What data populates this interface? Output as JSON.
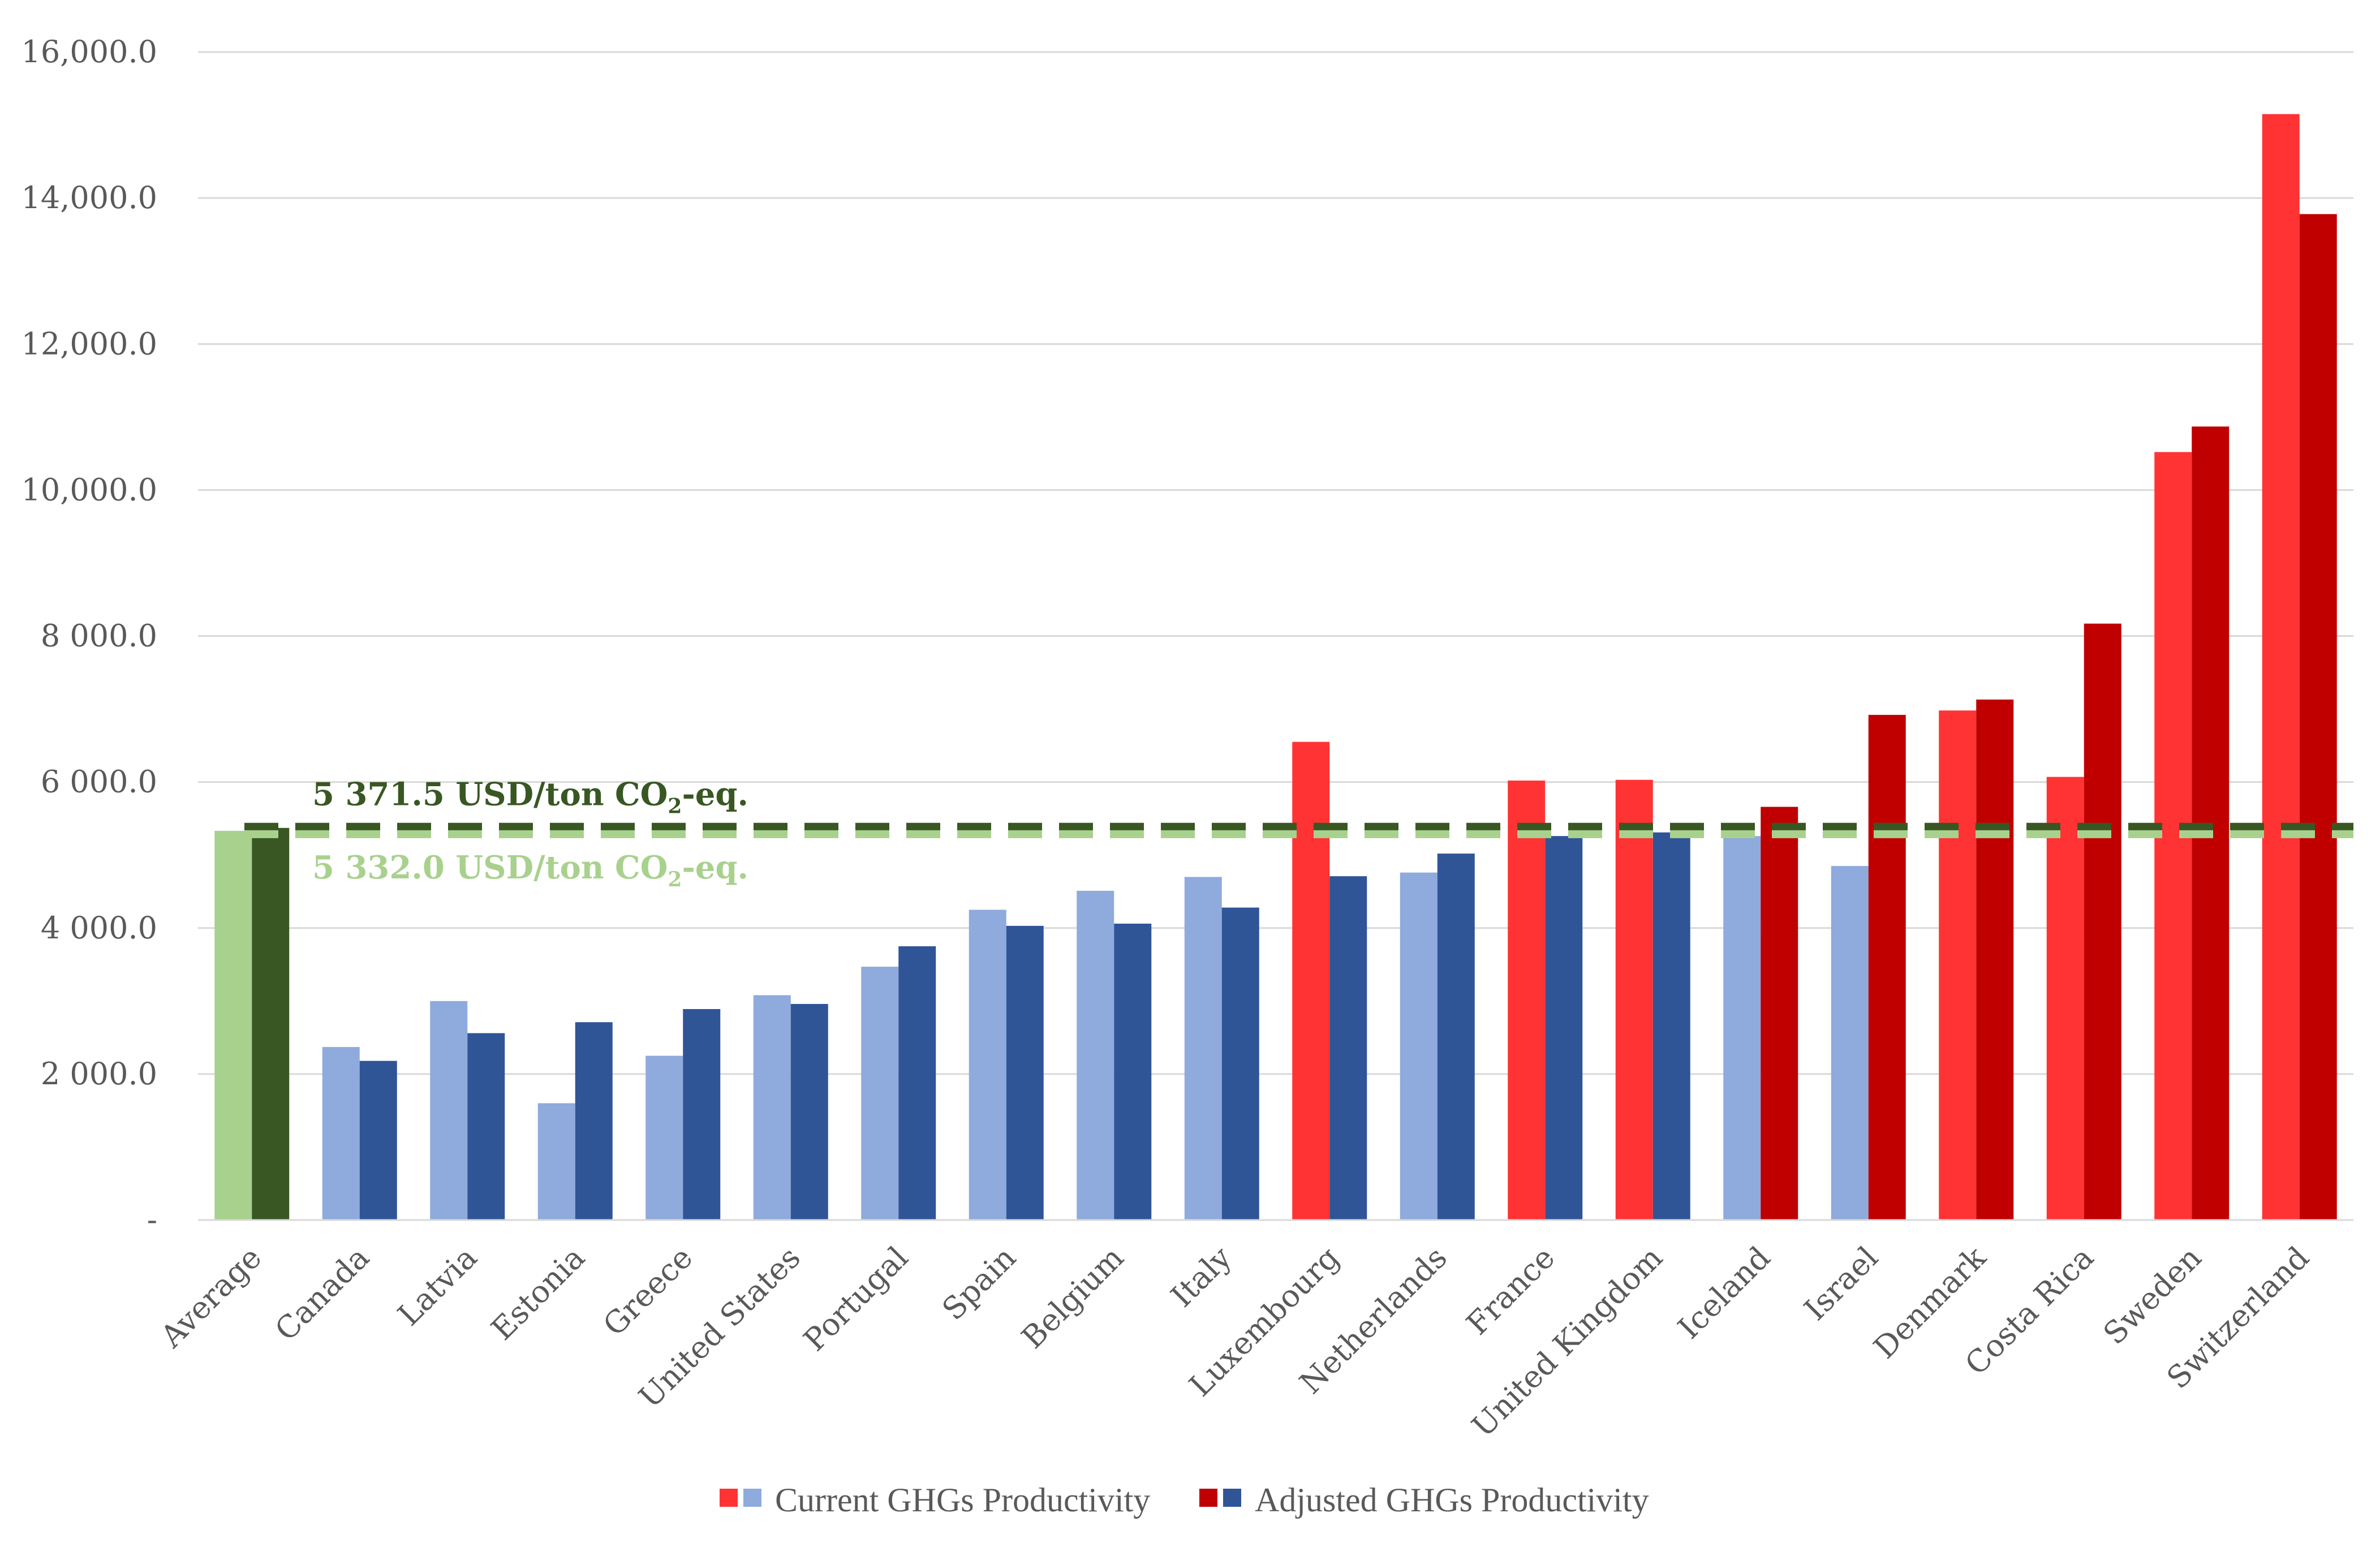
{
  "chart_data": {
    "type": "bar",
    "title": "",
    "xlabel": "",
    "ylabel": "",
    "ylim": [
      0,
      16000
    ],
    "yticks": [
      {
        "value": 0,
        "label": "-"
      },
      {
        "value": 2000,
        "label": "2 000.0"
      },
      {
        "value": 4000,
        "label": "4 000.0"
      },
      {
        "value": 6000,
        "label": "6 000.0"
      },
      {
        "value": 8000,
        "label": "8 000.0"
      },
      {
        "value": 10000,
        "label": "10,000.0"
      },
      {
        "value": 12000,
        "label": "12,000.0"
      },
      {
        "value": 14000,
        "label": "14,000.0"
      },
      {
        "value": 16000,
        "label": "16,000.0"
      }
    ],
    "grid": true,
    "categories": [
      "Average",
      "Canada",
      "Latvia",
      "Estonia",
      "Greece",
      "United States",
      "Portugal",
      "Spain",
      "Belgium",
      "Italy",
      "Luxembourg",
      "Netherlands",
      "France",
      "United Kingdom",
      "Iceland",
      "Israel",
      "Denmark",
      "Costa Rica",
      "Sweden",
      "Switzerland"
    ],
    "series": [
      {
        "name": "Current GHGs Productivity",
        "values": [
          5332,
          2370,
          3000,
          1600,
          2250,
          3080,
          3470,
          4250,
          4510,
          4700,
          6550,
          4760,
          6020,
          6030,
          5260,
          4850,
          6980,
          6070,
          10520,
          15150
        ],
        "colors": [
          "#a9d18e",
          "#8faadc",
          "#8faadc",
          "#8faadc",
          "#8faadc",
          "#8faadc",
          "#8faadc",
          "#8faadc",
          "#8faadc",
          "#8faadc",
          "#ff3333",
          "#8faadc",
          "#ff3333",
          "#ff3333",
          "#8faadc",
          "#8faadc",
          "#ff3333",
          "#ff3333",
          "#ff3333",
          "#ff3333"
        ]
      },
      {
        "name": "Adjusted GHGs Productivity",
        "values": [
          5371.5,
          2180,
          2560,
          2710,
          2890,
          2960,
          3750,
          4030,
          4060,
          4280,
          4710,
          5020,
          5260,
          5310,
          5660,
          6920,
          7130,
          8170,
          10870,
          13780
        ],
        "colors": [
          "#385723",
          "#2f5597",
          "#2f5597",
          "#2f5597",
          "#2f5597",
          "#2f5597",
          "#2f5597",
          "#2f5597",
          "#2f5597",
          "#2f5597",
          "#2f5597",
          "#2f5597",
          "#2f5597",
          "#2f5597",
          "#c00000",
          "#c00000",
          "#c00000",
          "#c00000",
          "#c00000",
          "#c00000"
        ]
      }
    ],
    "reference_lines": [
      {
        "value": 5371.5,
        "color": "#385723",
        "label": "5 371.5 USD/ton CO",
        "sub": "2",
        "suffix": "-eq."
      },
      {
        "value": 5332.0,
        "color": "#a9d18e",
        "label": "5 332.0 USD/ton CO",
        "sub": "2",
        "suffix": "-eq."
      }
    ],
    "legend": {
      "position": "bottom",
      "items": [
        {
          "label": "Current GHGs Productivity",
          "swatches": [
            "#ff3333",
            "#8faadc"
          ]
        },
        {
          "label": "Adjusted GHGs Productivity",
          "swatches": [
            "#c00000",
            "#2f5597"
          ]
        }
      ]
    }
  }
}
